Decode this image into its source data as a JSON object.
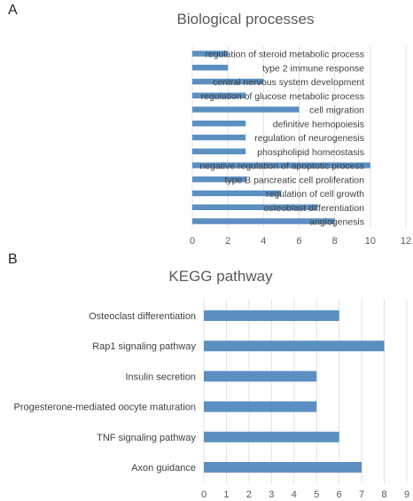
{
  "chart_data": [
    {
      "panel": "A",
      "type": "bar",
      "orientation": "horizontal",
      "title": "Biological processes",
      "categories": [
        "regulation of steroid metabolic process",
        "type 2 immune response",
        "central nervous system development",
        "regulation of glucose metabolic process",
        "cell migration",
        "definitive hemopoiesis",
        "regulation of neurogenesis",
        "phospholipid homeostasis",
        "negative regulation of apoptotic process",
        "type B pancreatic cell proliferation",
        "regulation of cell growth",
        "osteoblast differentiation",
        "angiogenesis"
      ],
      "values": [
        2,
        2,
        4,
        3,
        6,
        3,
        3,
        3,
        10,
        3,
        5,
        7,
        8
      ],
      "xlim": [
        0,
        12
      ],
      "ticks": [
        "0",
        "2",
        "4",
        "6",
        "8",
        "10",
        "12"
      ],
      "grid": true,
      "color": "#5b8fc2"
    },
    {
      "panel": "B",
      "type": "bar",
      "orientation": "horizontal",
      "title": "KEGG pathway",
      "categories": [
        "Osteoclast differentiation",
        "Rap1 signaling pathway",
        "Insulin secretion",
        "Progesterone-mediated oocyte maturation",
        "TNF signaling pathway",
        "Axon guidance"
      ],
      "values": [
        6,
        8,
        5,
        5,
        6,
        7
      ],
      "xlim": [
        0,
        9
      ],
      "ticks": [
        "0",
        "1",
        "2",
        "3",
        "4",
        "5",
        "6",
        "7",
        "8",
        "9"
      ],
      "grid": true,
      "color": "#5b8fc2"
    }
  ]
}
